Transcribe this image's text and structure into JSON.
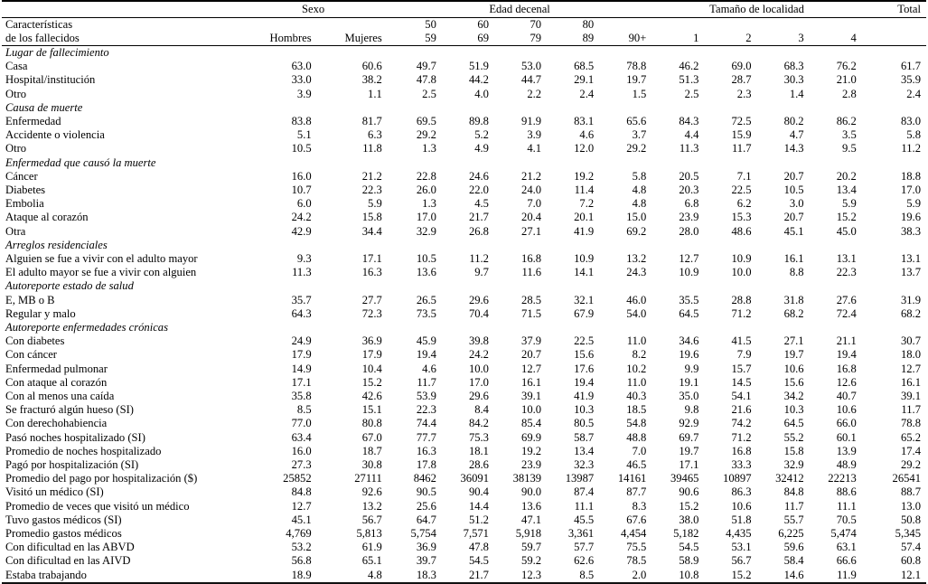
{
  "header": {
    "title_lines": [
      "Características",
      "de los fallecidos"
    ],
    "sexo_label": "Sexo",
    "edad_label": "Edad decenal",
    "localidad_label": "Tamaño de localidad",
    "total_label": "Total",
    "columns": {
      "hombres": "Hombres",
      "mujeres": "Mujeres",
      "age_top": [
        "50",
        "60",
        "70",
        "80",
        ""
      ],
      "age_bottom": [
        "59",
        "69",
        "79",
        "89",
        "90+"
      ],
      "localidad": [
        "1",
        "2",
        "3",
        "4"
      ]
    }
  },
  "chart_data": {
    "type": "table",
    "column_groups": [
      "Sexo",
      "Edad decenal",
      "Tamaño de localidad",
      "Total"
    ],
    "columns": [
      "Hombres",
      "Mujeres",
      "50-59",
      "60-69",
      "70-79",
      "80-89",
      "90+",
      "1",
      "2",
      "3",
      "4",
      "Total"
    ],
    "sections": [
      {
        "title": "Lugar de fallecimiento",
        "rows": [
          {
            "label": "Casa",
            "values": [
              "63.0",
              "60.6",
              "49.7",
              "51.9",
              "53.0",
              "68.5",
              "78.8",
              "46.2",
              "69.0",
              "68.3",
              "76.2",
              "61.7"
            ]
          },
          {
            "label": "Hospital/institución",
            "values": [
              "33.0",
              "38.2",
              "47.8",
              "44.2",
              "44.7",
              "29.1",
              "19.7",
              "51.3",
              "28.7",
              "30.3",
              "21.0",
              "35.9"
            ]
          },
          {
            "label": "Otro",
            "values": [
              "3.9",
              "1.1",
              "2.5",
              "4.0",
              "2.2",
              "2.4",
              "1.5",
              "2.5",
              "2.3",
              "1.4",
              "2.8",
              "2.4"
            ]
          }
        ]
      },
      {
        "title": "Causa de muerte",
        "rows": [
          {
            "label": "Enfermedad",
            "values": [
              "83.8",
              "81.7",
              "69.5",
              "89.8",
              "91.9",
              "83.1",
              "65.6",
              "84.3",
              "72.5",
              "80.2",
              "86.2",
              "83.0"
            ]
          },
          {
            "label": "Accidente o violencia",
            "values": [
              "5.1",
              "6.3",
              "29.2",
              "5.2",
              "3.9",
              "4.6",
              "3.7",
              "4.4",
              "15.9",
              "4.7",
              "3.5",
              "5.8"
            ]
          },
          {
            "label": "Otro",
            "values": [
              "10.5",
              "11.8",
              "1.3",
              "4.9",
              "4.1",
              "12.0",
              "29.2",
              "11.3",
              "11.7",
              "14.3",
              "9.5",
              "11.2"
            ]
          }
        ]
      },
      {
        "title": "Enfermedad que causó la muerte",
        "rows": [
          {
            "label": "Cáncer",
            "values": [
              "16.0",
              "21.2",
              "22.8",
              "24.6",
              "21.2",
              "19.2",
              "5.8",
              "20.5",
              "7.1",
              "20.7",
              "20.2",
              "18.8"
            ]
          },
          {
            "label": "Diabetes",
            "values": [
              "10.7",
              "22.3",
              "26.0",
              "22.0",
              "24.0",
              "11.4",
              "4.8",
              "20.3",
              "22.5",
              "10.5",
              "13.4",
              "17.0"
            ]
          },
          {
            "label": "Embolia",
            "values": [
              "6.0",
              "5.9",
              "1.3",
              "4.5",
              "7.0",
              "7.2",
              "4.8",
              "6.8",
              "6.2",
              "3.0",
              "5.9",
              "5.9"
            ]
          },
          {
            "label": "Ataque al corazón",
            "values": [
              "24.2",
              "15.8",
              "17.0",
              "21.7",
              "20.4",
              "20.1",
              "15.0",
              "23.9",
              "15.3",
              "20.7",
              "15.2",
              "19.6"
            ]
          },
          {
            "label": "Otra",
            "values": [
              "42.9",
              "34.4",
              "32.9",
              "26.8",
              "27.1",
              "41.9",
              "69.2",
              "28.0",
              "48.6",
              "45.1",
              "45.0",
              "38.3"
            ]
          }
        ]
      },
      {
        "title": "Arreglos residenciales",
        "rows": [
          {
            "label": "Alguien se fue a vivir con el adulto mayor",
            "values": [
              "9.3",
              "17.1",
              "10.5",
              "11.2",
              "16.8",
              "10.9",
              "13.2",
              "12.7",
              "10.9",
              "16.1",
              "13.1",
              "13.1"
            ]
          },
          {
            "label": "El adulto mayor se fue a vivir con alguien",
            "values": [
              "11.3",
              "16.3",
              "13.6",
              "9.7",
              "11.6",
              "14.1",
              "24.3",
              "10.9",
              "10.0",
              "8.8",
              "22.3",
              "13.7"
            ]
          }
        ]
      },
      {
        "title": "Autoreporte estado de salud",
        "rows": [
          {
            "label": "E, MB o B",
            "values": [
              "35.7",
              "27.7",
              "26.5",
              "29.6",
              "28.5",
              "32.1",
              "46.0",
              "35.5",
              "28.8",
              "31.8",
              "27.6",
              "31.9"
            ]
          },
          {
            "label": "Regular y malo",
            "values": [
              "64.3",
              "72.3",
              "73.5",
              "70.4",
              "71.5",
              "67.9",
              "54.0",
              "64.5",
              "71.2",
              "68.2",
              "72.4",
              "68.2"
            ]
          }
        ]
      },
      {
        "title": "Autoreporte enfermedades crónicas",
        "rows": [
          {
            "label": "Con diabetes",
            "values": [
              "24.9",
              "36.9",
              "45.9",
              "39.8",
              "37.9",
              "22.5",
              "11.0",
              "34.6",
              "41.5",
              "27.1",
              "21.1",
              "30.7"
            ]
          },
          {
            "label": "Con cáncer",
            "values": [
              "17.9",
              "17.9",
              "19.4",
              "24.2",
              "20.7",
              "15.6",
              "8.2",
              "19.6",
              "7.9",
              "19.7",
              "19.4",
              "18.0"
            ]
          },
          {
            "label": "Enfermedad pulmonar",
            "values": [
              "14.9",
              "10.4",
              "4.6",
              "10.0",
              "12.7",
              "17.6",
              "10.2",
              "9.9",
              "15.7",
              "10.6",
              "16.8",
              "12.7"
            ]
          },
          {
            "label": "Con ataque al corazón",
            "values": [
              "17.1",
              "15.2",
              "11.7",
              "17.0",
              "16.1",
              "19.4",
              "11.0",
              "19.1",
              "14.5",
              "15.6",
              "12.6",
              "16.1"
            ]
          },
          {
            "label": "Con al menos una caída",
            "values": [
              "35.8",
              "42.6",
              "53.9",
              "29.6",
              "39.1",
              "41.9",
              "40.3",
              "35.0",
              "54.1",
              "34.2",
              "40.7",
              "39.1"
            ]
          },
          {
            "label": "Se fracturó algún hueso (SI)",
            "values": [
              "8.5",
              "15.1",
              "22.3",
              "8.4",
              "10.0",
              "10.3",
              "18.5",
              "9.8",
              "21.6",
              "10.3",
              "10.6",
              "11.7"
            ]
          },
          {
            "label": "Con derechohabiencia",
            "values": [
              "77.0",
              "80.8",
              "74.4",
              "84.2",
              "85.4",
              "80.5",
              "54.8",
              "92.9",
              "74.2",
              "64.5",
              "66.0",
              "78.8"
            ]
          },
          {
            "label": "Pasó noches hospitalizado (SI)",
            "values": [
              "63.4",
              "67.0",
              "77.7",
              "75.3",
              "69.9",
              "58.7",
              "48.8",
              "69.7",
              "71.2",
              "55.2",
              "60.1",
              "65.2"
            ]
          },
          {
            "label": "Promedio de noches hospitalizado",
            "values": [
              "16.0",
              "18.7",
              "16.3",
              "18.1",
              "19.2",
              "13.4",
              "7.0",
              "19.7",
              "16.8",
              "15.8",
              "13.9",
              "17.4"
            ]
          },
          {
            "label": "Pagó por hospitalización (SI)",
            "values": [
              "27.3",
              "30.8",
              "17.8",
              "28.6",
              "23.9",
              "32.3",
              "46.5",
              "17.1",
              "33.3",
              "32.9",
              "48.9",
              "29.2"
            ]
          },
          {
            "label": "Promedio del pago por hospitalización ($)",
            "values": [
              "25852",
              "27111",
              "8462",
              "36091",
              "38139",
              "13987",
              "14161",
              "39465",
              "10897",
              "32412",
              "22213",
              "26541"
            ]
          },
          {
            "label": "Visitó un médico (SI)",
            "values": [
              "84.8",
              "92.6",
              "90.5",
              "90.4",
              "90.0",
              "87.4",
              "87.7",
              "90.6",
              "86.3",
              "84.8",
              "88.6",
              "88.7"
            ]
          },
          {
            "label": "Promedio de veces que visitó un médico",
            "values": [
              "12.7",
              "13.2",
              "25.6",
              "14.4",
              "13.6",
              "11.1",
              "8.3",
              "15.2",
              "10.6",
              "11.7",
              "11.1",
              "13.0"
            ]
          },
          {
            "label": "Tuvo gastos médicos (SI)",
            "values": [
              "45.1",
              "56.7",
              "64.7",
              "51.2",
              "47.1",
              "45.5",
              "67.6",
              "38.0",
              "51.8",
              "55.7",
              "70.5",
              "50.8"
            ]
          },
          {
            "label": "Promedio gastos médicos",
            "values": [
              "4,769",
              "5,813",
              "5,754",
              "7,571",
              "5,918",
              "3,361",
              "4,454",
              "5,182",
              "4,435",
              "6,225",
              "5,474",
              "5,345"
            ]
          },
          {
            "label": "Con dificultad en las ABVD",
            "values": [
              "53.2",
              "61.9",
              "36.9",
              "47.8",
              "59.7",
              "57.7",
              "75.5",
              "54.5",
              "53.1",
              "59.6",
              "63.1",
              "57.4"
            ]
          },
          {
            "label": "Con dificultad en las AIVD",
            "values": [
              "56.8",
              "65.1",
              "39.7",
              "54.5",
              "59.2",
              "62.6",
              "78.5",
              "58.9",
              "56.7",
              "58.4",
              "66.6",
              "60.8"
            ]
          },
          {
            "label": "Estaba trabajando",
            "values": [
              "18.9",
              "4.8",
              "18.3",
              "21.7",
              "12.3",
              "8.5",
              "2.0",
              "10.8",
              "15.2",
              "14.6",
              "11.9",
              "12.1"
            ]
          }
        ]
      }
    ]
  }
}
